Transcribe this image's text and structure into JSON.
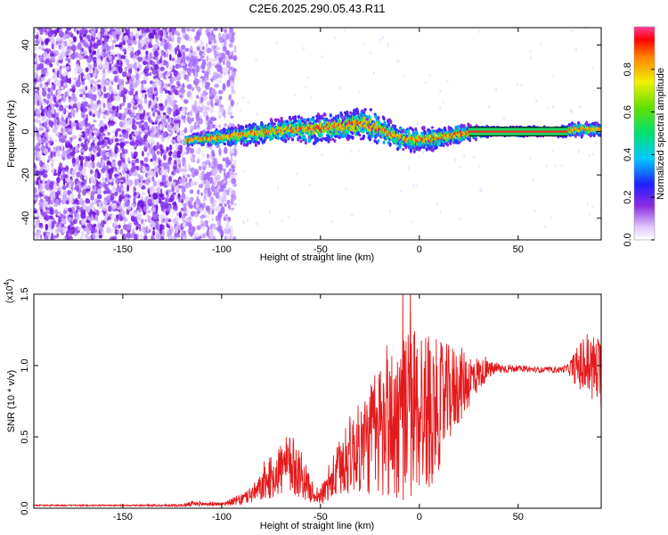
{
  "title": "C2E6.2025.290.05.43.R11",
  "colors": {
    "snr_line": "#e41a1c",
    "spectro_bg": "#ffffff",
    "ridge": "#000000"
  },
  "chart_data": [
    {
      "type": "heatmap",
      "name": "spectrogram",
      "xlabel": "Height of straight line (km)",
      "ylabel": "Frequency (Hz)",
      "xlim": [
        -195,
        92
      ],
      "ylim": [
        -50,
        48
      ],
      "xticks": [
        -150,
        -100,
        -50,
        0,
        50
      ],
      "xtick_labels": [
        "-150",
        "-100",
        "-50",
        "0",
        "50"
      ],
      "yticks": [
        -40,
        -20,
        0,
        20,
        40
      ],
      "ytick_labels": [
        "-40",
        "-20",
        "0",
        "20",
        "40"
      ],
      "noise_regions": [
        {
          "x": [
            -195,
            -120
          ],
          "density": "high"
        },
        {
          "x": [
            -120,
            -93
          ],
          "density": "medium"
        }
      ],
      "ridge": {
        "x": [
          -118,
          -105,
          -95,
          -85,
          -75,
          -65,
          -55,
          -45,
          -35,
          -28,
          -22,
          -15,
          -8,
          0,
          8,
          15,
          22,
          30,
          40,
          50,
          60,
          70,
          80,
          92
        ],
        "freq": [
          -4,
          -3,
          -2,
          -1,
          0,
          1,
          1,
          2,
          3,
          4,
          2,
          -1,
          -3,
          -4,
          -3,
          -2,
          -1,
          0,
          0,
          0,
          0,
          0,
          1,
          1
        ],
        "halfwidth": [
          2,
          3,
          4,
          5,
          5,
          5,
          6,
          6,
          7,
          7,
          7,
          6,
          5,
          5,
          5,
          4,
          4,
          3,
          2,
          2,
          2,
          2,
          3,
          3
        ]
      },
      "flat_segment": {
        "x": [
          25,
          75
        ],
        "freq": 0
      },
      "colorbar": {
        "label": "Normalized spectral amplitude",
        "ticks": [
          0.0,
          0.2,
          0.4,
          0.6,
          0.8
        ],
        "tick_labels": [
          "0.0",
          "0.2",
          "0.4",
          "0.6",
          "0.8"
        ],
        "range": [
          0,
          1
        ]
      }
    },
    {
      "type": "line",
      "name": "snr",
      "xlabel": "Height of straight line (km)",
      "ylabel": "SNR (10 * v/v)",
      "yscale_label": "(x10",
      "yscale_exp": "4",
      "yscale_close": ")",
      "xlim": [
        -195,
        92
      ],
      "ylim": [
        0,
        1.5
      ],
      "xticks": [
        -150,
        -100,
        -50,
        0,
        50
      ],
      "xtick_labels": [
        "-150",
        "-100",
        "-50",
        "0",
        "50"
      ],
      "yticks": [
        0.0,
        0.5,
        1.0,
        1.5
      ],
      "ytick_labels": [
        "0.0",
        "0.5",
        "1.0",
        "1.5"
      ],
      "envelope": {
        "x": [
          -195,
          -150,
          -120,
          -115,
          -100,
          -90,
          -82,
          -76,
          -70,
          -65,
          -60,
          -55,
          -50,
          -45,
          -40,
          -35,
          -30,
          -25,
          -20,
          -15,
          -10,
          -5,
          0,
          5,
          10,
          15,
          20,
          25,
          30,
          35,
          40,
          50,
          60,
          70,
          75,
          80,
          85,
          92
        ],
        "mean": [
          0.02,
          0.02,
          0.02,
          0.03,
          0.03,
          0.06,
          0.12,
          0.2,
          0.28,
          0.3,
          0.25,
          0.12,
          0.08,
          0.18,
          0.28,
          0.38,
          0.42,
          0.48,
          0.55,
          0.58,
          0.62,
          0.66,
          0.7,
          0.68,
          0.72,
          0.8,
          0.86,
          0.9,
          0.94,
          0.97,
          0.98,
          0.98,
          0.97,
          0.97,
          0.98,
          0.99,
          1.0,
          0.95
        ],
        "spread": [
          0.005,
          0.005,
          0.008,
          0.02,
          0.01,
          0.04,
          0.08,
          0.14,
          0.2,
          0.22,
          0.18,
          0.08,
          0.06,
          0.14,
          0.22,
          0.28,
          0.32,
          0.4,
          0.5,
          0.55,
          0.58,
          0.62,
          0.62,
          0.55,
          0.45,
          0.35,
          0.28,
          0.2,
          0.12,
          0.06,
          0.04,
          0.02,
          0.02,
          0.02,
          0.03,
          0.15,
          0.25,
          0.25
        ]
      }
    }
  ]
}
